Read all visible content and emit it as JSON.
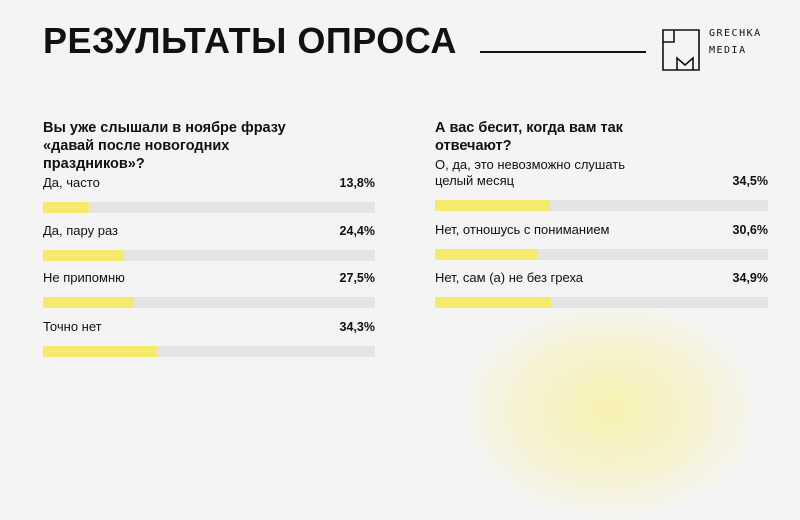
{
  "header": {
    "title": "РЕЗУЛЬТАТЫ ОПРОСА"
  },
  "logo": {
    "line1": "GRECHKA",
    "line2": "MEDIA"
  },
  "colors": {
    "bar_fill": "#f5ea6b",
    "bar_track": "#e4e4e4"
  },
  "chart_data": [
    {
      "type": "bar",
      "title": "Вы уже слышали в ноябре фразу «давай после новогодних праздников»?",
      "categories": [
        "Да, часто",
        "Да, пару раз",
        "Не припомню",
        "Точно нет"
      ],
      "values": [
        13.8,
        24.4,
        27.5,
        34.3
      ],
      "value_labels": [
        "13,8%",
        "24,4%",
        "27,5%",
        "34,3%"
      ],
      "ylim": [
        0,
        100
      ]
    },
    {
      "type": "bar",
      "title": "А вас бесит, когда вам так отвечают?",
      "categories": [
        "О, да, это невозможно слушать целый месяц",
        "Нет, отношусь с пониманием",
        "Нет, сам (а) не без греха"
      ],
      "values": [
        34.5,
        30.6,
        34.9
      ],
      "value_labels": [
        "34,5%",
        "30,6%",
        "34,9%"
      ],
      "ylim": [
        0,
        100
      ]
    }
  ]
}
